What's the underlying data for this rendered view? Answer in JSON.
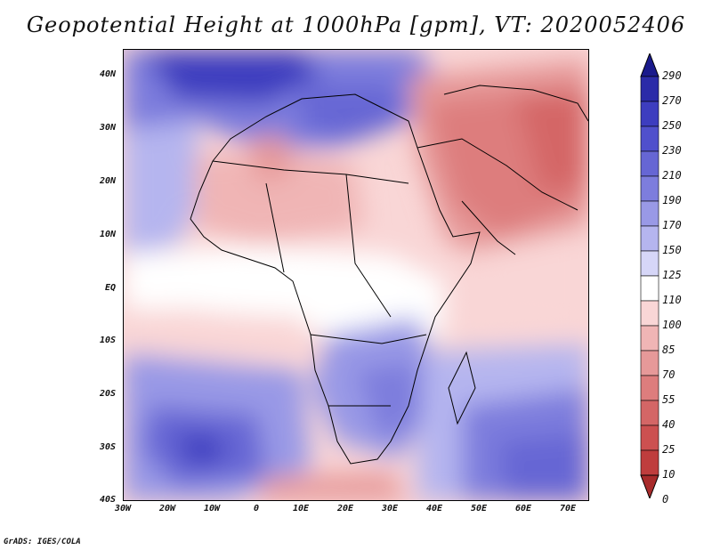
{
  "title": "Geopotential Height at 1000hPa [gpm], VT: 2020052406",
  "credit": "GrADS: IGES/COLA",
  "map": {
    "lat_labels": [
      "40N",
      "30N",
      "20N",
      "10N",
      "EQ",
      "10S",
      "20S",
      "30S",
      "40S"
    ],
    "lon_labels": [
      "30W",
      "20W",
      "10W",
      "0",
      "10E",
      "20E",
      "30E",
      "40E",
      "50E",
      "60E",
      "70E"
    ]
  },
  "colorbar": {
    "labels": [
      "290",
      "270",
      "250",
      "230",
      "210",
      "190",
      "170",
      "150",
      "125",
      "110",
      "100",
      "85",
      "70",
      "55",
      "40",
      "25",
      "10",
      "0"
    ],
    "colors": [
      "#1a1a8c",
      "#2b2ba8",
      "#3d3dbf",
      "#5050cc",
      "#6666d4",
      "#7d7ddd",
      "#9999e6",
      "#b5b5ef",
      "#d6d6f7",
      "#ffffff",
      "#f9d6d6",
      "#f0b5b5",
      "#e69999",
      "#dd7d7d",
      "#d46666",
      "#cc5050",
      "#bf3d3d",
      "#a82b2b"
    ]
  },
  "colors": {
    "high": "#3d3dbf",
    "neutral": "#ffffff",
    "low": "#cc5050"
  }
}
